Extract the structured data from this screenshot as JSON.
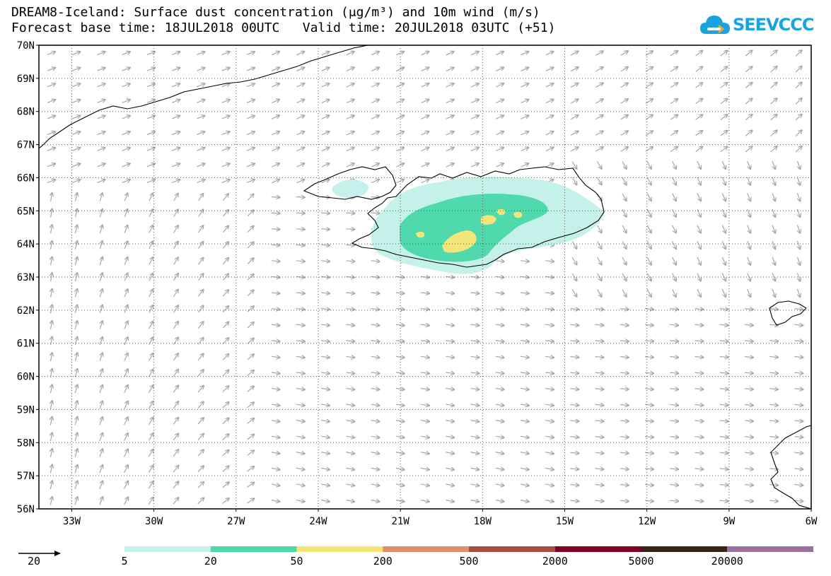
{
  "title": {
    "line1": "DREAM8-Iceland: Surface dust concentration (μg/m³) and 10m wind (m/s)",
    "line2": "Forecast base time: 18JUL2018 00UTC   Valid time: 20JUL2018 03UTC (+51)"
  },
  "logo": {
    "text": "SEEVCCC",
    "icon": "cloud-logo-icon",
    "color": "#1aa3e0"
  },
  "map": {
    "lat_range": [
      56,
      70
    ],
    "lon_range": [
      -34.2,
      -6
    ],
    "lat_labels": [
      "56N",
      "57N",
      "58N",
      "59N",
      "60N",
      "61N",
      "62N",
      "63N",
      "64N",
      "65N",
      "66N",
      "67N",
      "68N",
      "69N",
      "70N"
    ],
    "lon_labels": [
      {
        "lon": -33,
        "label": "33W"
      },
      {
        "lon": -30,
        "label": "30W"
      },
      {
        "lon": -27,
        "label": "27W"
      },
      {
        "lon": -24,
        "label": "24W"
      },
      {
        "lon": -21,
        "label": "21W"
      },
      {
        "lon": -18,
        "label": "18W"
      },
      {
        "lon": -15,
        "label": "15W"
      },
      {
        "lon": -12,
        "label": "12W"
      },
      {
        "lon": -9,
        "label": "9W"
      },
      {
        "lon": -6,
        "label": "6W"
      }
    ],
    "grid": true,
    "wind_arrow_color": "#a6a6a6"
  },
  "legend": {
    "wind_reference_value": "20",
    "levels": [
      "5",
      "20",
      "50",
      "200",
      "500",
      "2000",
      "5000",
      "20000"
    ],
    "colors": [
      "#c4f2ea",
      "#4fd9ac",
      "#f2e57a",
      "#e08f6a",
      "#a64d43",
      "#800026",
      "#3a2419",
      "#9b6fa0"
    ]
  }
}
